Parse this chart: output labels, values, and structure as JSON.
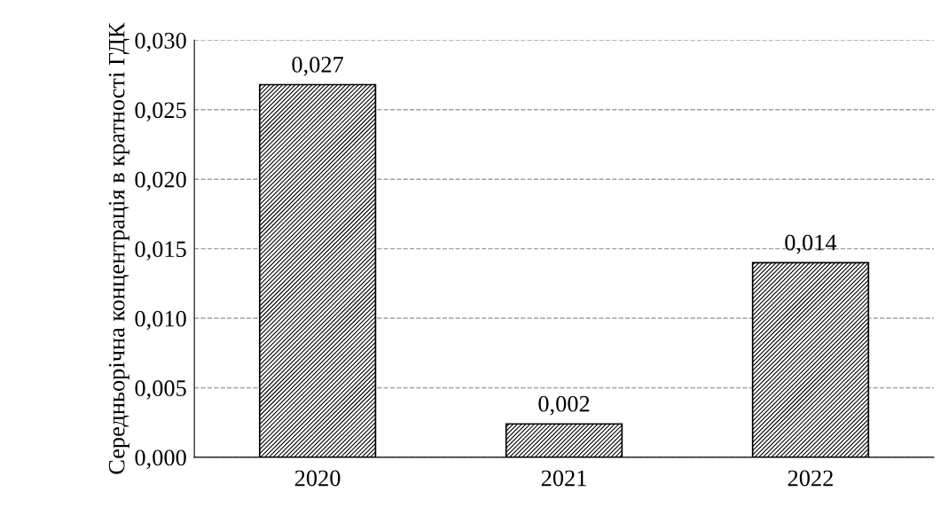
{
  "chart_data": {
    "type": "bar",
    "ylabel": "Середньорічна концентрація в кратності ГДК",
    "categories": [
      "2020",
      "2021",
      "2022"
    ],
    "values": [
      0.0268,
      0.0024,
      0.014
    ],
    "value_labels": [
      "0,027",
      "0,002",
      "0,014"
    ],
    "color": "#000000",
    "ylim": [
      0,
      0.03
    ],
    "yticks": [
      {
        "value": 0,
        "label": "0,000"
      },
      {
        "value": 0.005,
        "label": "0,005"
      },
      {
        "value": 0.01,
        "label": "0,010"
      },
      {
        "value": 0.015,
        "label": "0,015"
      },
      {
        "value": 0.02,
        "label": "0,020"
      },
      {
        "value": 0.025,
        "label": "0,025"
      },
      {
        "value": 0.03,
        "label": "0,030"
      }
    ],
    "grid": "y",
    "line_style": "dashed",
    "legend": false
  }
}
